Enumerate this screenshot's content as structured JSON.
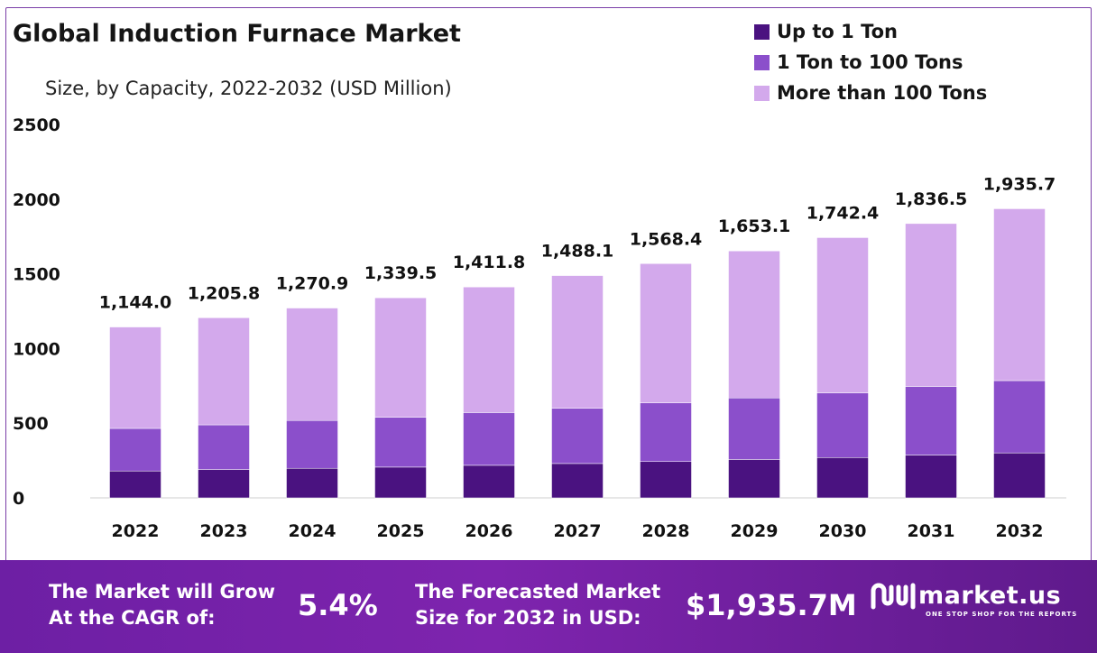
{
  "header": {
    "title": "Global Induction Furnace Market",
    "subtitle": "Size, by Capacity, 2022-2032 (USD Million)"
  },
  "colors": {
    "up_to_1_ton": "#4a1280",
    "ton1_to_100": "#8b4fcb",
    "more_than_100": "#d3a9ec",
    "footer_bg": "#7322a8",
    "frame": "#7b3fa8"
  },
  "chart_data": {
    "type": "bar",
    "stacked": true,
    "title": "Global Induction Furnace Market",
    "subtitle": "Size, by Capacity, 2022-2032 (USD Million)",
    "xlabel": "",
    "ylabel": "",
    "ylim": [
      0,
      2500
    ],
    "yticks": [
      "0",
      "500",
      "1000",
      "1500",
      "2000",
      "2500"
    ],
    "categories": [
      "2022",
      "2023",
      "2024",
      "2025",
      "2026",
      "2027",
      "2028",
      "2029",
      "2030",
      "2031",
      "2032"
    ],
    "series": [
      {
        "name": "Up to 1 Ton",
        "values": [
          180,
          190,
          198,
          206,
          218,
          230,
          243,
          257,
          270,
          287,
          301
        ]
      },
      {
        "name": "1 Ton to 100 Tons",
        "values": [
          285,
          299,
          320,
          334,
          353,
          370,
          393,
          412,
          433,
          459,
          484
        ]
      },
      {
        "name": "More than 100 Tons",
        "values": [
          679,
          716.8,
          752.9,
          799.5,
          840.8,
          888.1,
          932.4,
          984.1,
          1039.4,
          1090.5,
          1150.7
        ]
      }
    ],
    "totals": [
      "1,144.0",
      "1,205.8",
      "1,270.9",
      "1,339.5",
      "1,411.8",
      "1,488.1",
      "1,568.4",
      "1,653.1",
      "1,742.4",
      "1,836.5",
      "1,935.7"
    ],
    "legend_position": "top-right"
  },
  "legend": {
    "items": [
      {
        "label": "Up to 1 Ton",
        "color": "#4a1280"
      },
      {
        "label": "1 Ton to 100 Tons",
        "color": "#8b4fcb"
      },
      {
        "label": "More than 100 Tons",
        "color": "#d3a9ec"
      }
    ]
  },
  "footer": {
    "cagr_line1": "The Market will Grow",
    "cagr_line2": "At the CAGR of:",
    "cagr_value": "5.4%",
    "forecast_line1": "The Forecasted Market",
    "forecast_line2": "Size for 2032 in USD:",
    "forecast_value": "$1,935.7M",
    "brand_name": "market.us",
    "brand_tagline": "ONE STOP SHOP FOR THE REPORTS"
  }
}
